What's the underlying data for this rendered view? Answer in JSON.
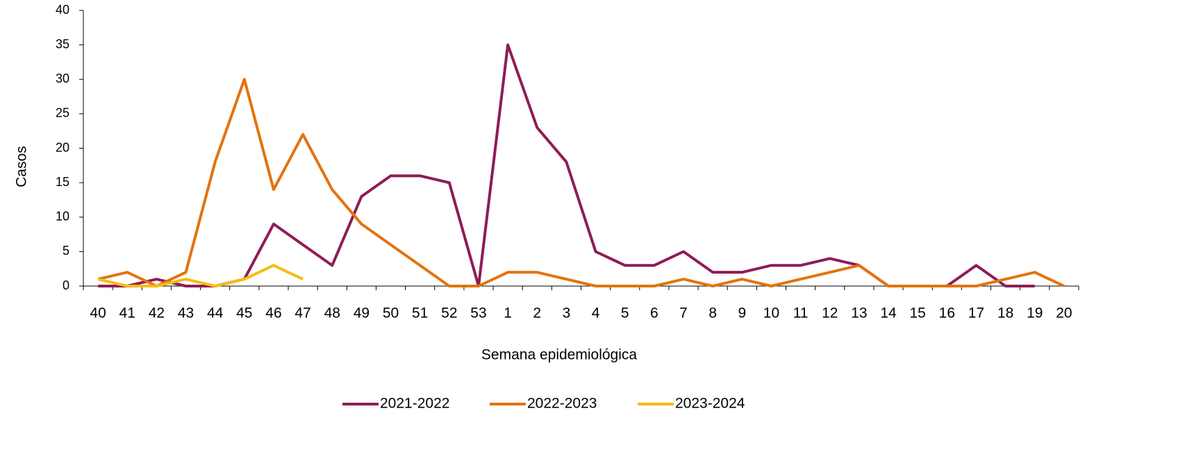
{
  "chart_data": {
    "type": "line",
    "y_label": "Casos",
    "x_label": "Semana epidemiológica",
    "categories": [
      "40",
      "41",
      "42",
      "43",
      "44",
      "45",
      "46",
      "47",
      "48",
      "49",
      "50",
      "51",
      "52",
      "53",
      "1",
      "2",
      "3",
      "4",
      "5",
      "6",
      "7",
      "8",
      "9",
      "10",
      "11",
      "12",
      "13",
      "14",
      "15",
      "16",
      "17",
      "18",
      "19",
      "20"
    ],
    "series": [
      {
        "name": "2021-2022",
        "color": "#8e1c56",
        "values": [
          0,
          0,
          1,
          0,
          0,
          1,
          9,
          6,
          3,
          13,
          16,
          16,
          15,
          0,
          35,
          23,
          18,
          5,
          3,
          3,
          5,
          2,
          2,
          3,
          3,
          4,
          3,
          0,
          0,
          0,
          3,
          0,
          0,
          null
        ]
      },
      {
        "name": "2022-2023",
        "color": "#e3730f",
        "values": [
          1,
          2,
          0,
          2,
          18,
          30,
          14,
          22,
          14,
          9,
          6,
          3,
          0,
          0,
          2,
          2,
          1,
          0,
          0,
          0,
          1,
          0,
          1,
          0,
          1,
          2,
          3,
          0,
          0,
          0,
          0,
          1,
          2,
          0
        ]
      },
      {
        "name": "2023-2024",
        "color": "#f7bc12",
        "values": [
          1,
          0,
          0,
          1,
          0,
          1,
          3,
          1,
          null,
          null,
          null,
          null,
          null,
          null,
          null,
          null,
          null,
          null,
          null,
          null,
          null,
          null,
          null,
          null,
          null,
          null,
          null,
          null,
          null,
          null,
          null,
          null,
          null,
          null
        ]
      }
    ],
    "ylim": [
      0,
      40
    ],
    "yticks": [
      0,
      5,
      10,
      15,
      20,
      25,
      30,
      35,
      40
    ],
    "grid": false,
    "legend": "bottom"
  }
}
